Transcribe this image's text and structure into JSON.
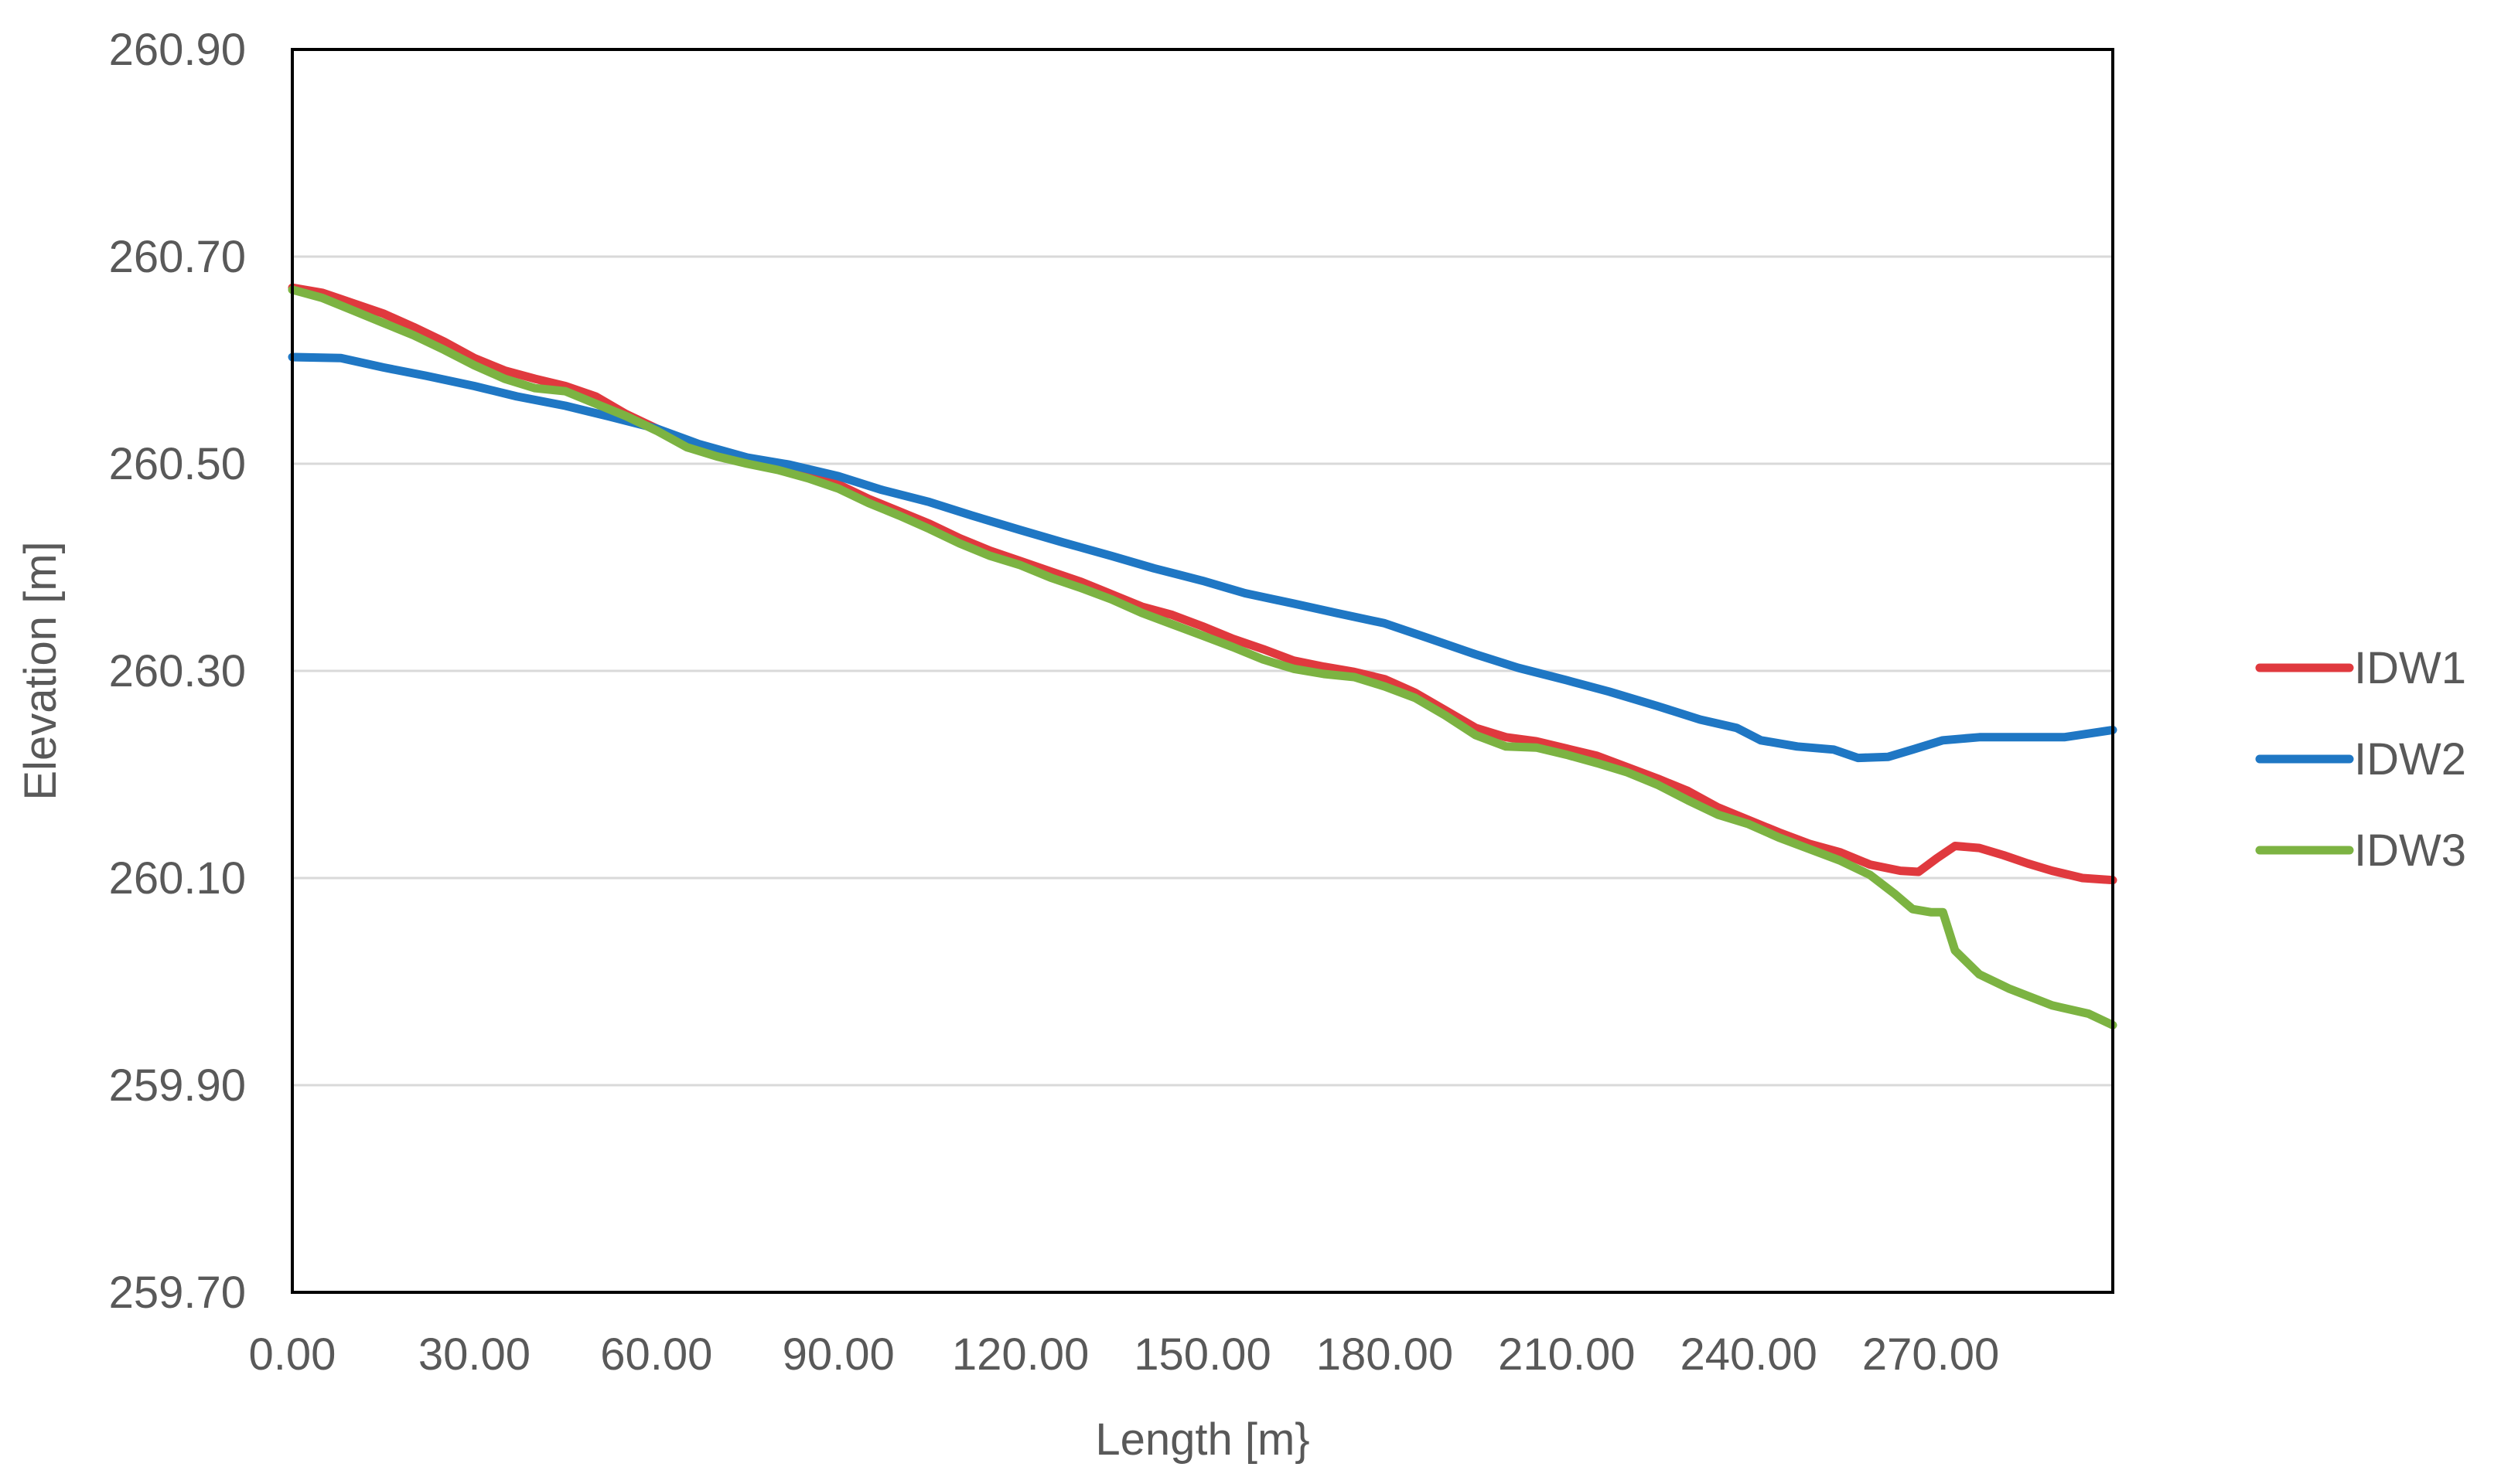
{
  "colors": {
    "IDW1": "#e0393e",
    "IDW2": "#1f77c4",
    "IDW3": "#7cb342",
    "grid": "#d9d9d9",
    "frame": "#000000",
    "text": "#595959"
  },
  "chart_data": {
    "type": "line",
    "title": "",
    "xlabel": "Length [m}",
    "ylabel": "Elevation [m]",
    "xlim": [
      0,
      300
    ],
    "ylim": [
      259.7,
      260.9
    ],
    "x_ticks": [
      0,
      30,
      60,
      90,
      120,
      150,
      180,
      210,
      240,
      270
    ],
    "x_tick_labels": [
      "0.00",
      "30.00",
      "60.00",
      "90.00",
      "120.00",
      "150.00",
      "180.00",
      "210.00",
      "240.00",
      "270.00"
    ],
    "y_ticks": [
      259.7,
      259.9,
      260.1,
      260.3,
      260.5,
      260.7,
      260.9
    ],
    "y_tick_labels": [
      "259.70",
      "259.90",
      "260.10",
      "260.30",
      "260.50",
      "260.70",
      "260.90"
    ],
    "grid": "horizontal",
    "legend_position": "right",
    "series": [
      {
        "name": "IDW1",
        "color_key": "IDW1",
        "points": [
          [
            0,
            260.67
          ],
          [
            5,
            260.665
          ],
          [
            10,
            260.655
          ],
          [
            15,
            260.645
          ],
          [
            20,
            260.632
          ],
          [
            25,
            260.618
          ],
          [
            30,
            260.602
          ],
          [
            35,
            260.59
          ],
          [
            40,
            260.582
          ],
          [
            45,
            260.575
          ],
          [
            50,
            260.565
          ],
          [
            55,
            260.548
          ],
          [
            60,
            260.534
          ],
          [
            65,
            260.52
          ],
          [
            70,
            260.512
          ],
          [
            75,
            260.503
          ],
          [
            80,
            260.496
          ],
          [
            85,
            260.49
          ],
          [
            90,
            260.48
          ],
          [
            95,
            260.466
          ],
          [
            100,
            260.454
          ],
          [
            105,
            260.442
          ],
          [
            110,
            260.428
          ],
          [
            115,
            260.416
          ],
          [
            120,
            260.406
          ],
          [
            125,
            260.396
          ],
          [
            130,
            260.386
          ],
          [
            135,
            260.374
          ],
          [
            140,
            260.362
          ],
          [
            145,
            260.354
          ],
          [
            150,
            260.343
          ],
          [
            155,
            260.331
          ],
          [
            160,
            260.321
          ],
          [
            165,
            260.31
          ],
          [
            170,
            260.304
          ],
          [
            175,
            260.299
          ],
          [
            180,
            260.292
          ],
          [
            185,
            260.279
          ],
          [
            190,
            260.262
          ],
          [
            195,
            260.245
          ],
          [
            200,
            260.236
          ],
          [
            205,
            260.232
          ],
          [
            210,
            260.225
          ],
          [
            215,
            260.218
          ],
          [
            220,
            260.207
          ],
          [
            225,
            260.196
          ],
          [
            230,
            260.184
          ],
          [
            235,
            260.168
          ],
          [
            240,
            260.156
          ],
          [
            245,
            260.144
          ],
          [
            250,
            260.133
          ],
          [
            255,
            260.125
          ],
          [
            260,
            260.113
          ],
          [
            265,
            260.107
          ],
          [
            268,
            260.106
          ],
          [
            271,
            260.119
          ],
          [
            274,
            260.131
          ],
          [
            278,
            260.129
          ],
          [
            282,
            260.122
          ],
          [
            286,
            260.114
          ],
          [
            290,
            260.107
          ],
          [
            295,
            260.1
          ],
          [
            300,
            260.098
          ]
        ]
      },
      {
        "name": "IDW2",
        "color_key": "IDW2",
        "points": [
          [
            0,
            260.603
          ],
          [
            8,
            260.602
          ],
          [
            15,
            260.593
          ],
          [
            22,
            260.585
          ],
          [
            30,
            260.575
          ],
          [
            37,
            260.565
          ],
          [
            45,
            260.556
          ],
          [
            52,
            260.546
          ],
          [
            60,
            260.534
          ],
          [
            67,
            260.519
          ],
          [
            75,
            260.506
          ],
          [
            82,
            260.499
          ],
          [
            90,
            260.488
          ],
          [
            97,
            260.475
          ],
          [
            105,
            260.463
          ],
          [
            112,
            260.45
          ],
          [
            120,
            260.436
          ],
          [
            127,
            260.424
          ],
          [
            135,
            260.411
          ],
          [
            142,
            260.399
          ],
          [
            150,
            260.387
          ],
          [
            157,
            260.375
          ],
          [
            165,
            260.365
          ],
          [
            172,
            260.356
          ],
          [
            180,
            260.346
          ],
          [
            187,
            260.332
          ],
          [
            195,
            260.316
          ],
          [
            202,
            260.303
          ],
          [
            210,
            260.291
          ],
          [
            217,
            260.28
          ],
          [
            225,
            260.266
          ],
          [
            232,
            260.253
          ],
          [
            238,
            260.245
          ],
          [
            242,
            260.233
          ],
          [
            248,
            260.227
          ],
          [
            254,
            260.224
          ],
          [
            258,
            260.216
          ],
          [
            263,
            260.217
          ],
          [
            267,
            260.224
          ],
          [
            272,
            260.233
          ],
          [
            278,
            260.236
          ],
          [
            285,
            260.236
          ],
          [
            292,
            260.236
          ],
          [
            300,
            260.243
          ]
        ]
      },
      {
        "name": "IDW3",
        "color_key": "IDW3",
        "points": [
          [
            0,
            260.668
          ],
          [
            5,
            260.66
          ],
          [
            10,
            260.648
          ],
          [
            15,
            260.636
          ],
          [
            20,
            260.624
          ],
          [
            25,
            260.61
          ],
          [
            30,
            260.595
          ],
          [
            35,
            260.582
          ],
          [
            40,
            260.573
          ],
          [
            45,
            260.57
          ],
          [
            50,
            260.558
          ],
          [
            55,
            260.546
          ],
          [
            60,
            260.532
          ],
          [
            65,
            260.516
          ],
          [
            70,
            260.507
          ],
          [
            75,
            260.5
          ],
          [
            80,
            260.494
          ],
          [
            85,
            260.486
          ],
          [
            90,
            260.476
          ],
          [
            95,
            260.462
          ],
          [
            100,
            260.45
          ],
          [
            105,
            260.437
          ],
          [
            110,
            260.423
          ],
          [
            115,
            260.411
          ],
          [
            120,
            260.402
          ],
          [
            125,
            260.39
          ],
          [
            130,
            260.38
          ],
          [
            135,
            260.369
          ],
          [
            140,
            260.356
          ],
          [
            145,
            260.345
          ],
          [
            150,
            260.334
          ],
          [
            155,
            260.323
          ],
          [
            160,
            260.311
          ],
          [
            165,
            260.302
          ],
          [
            170,
            260.297
          ],
          [
            175,
            260.294
          ],
          [
            180,
            260.285
          ],
          [
            185,
            260.274
          ],
          [
            190,
            260.257
          ],
          [
            195,
            260.238
          ],
          [
            200,
            260.227
          ],
          [
            205,
            260.226
          ],
          [
            210,
            260.219
          ],
          [
            215,
            260.211
          ],
          [
            220,
            260.202
          ],
          [
            225,
            260.19
          ],
          [
            230,
            260.175
          ],
          [
            235,
            260.161
          ],
          [
            240,
            260.152
          ],
          [
            245,
            260.139
          ],
          [
            250,
            260.128
          ],
          [
            255,
            260.117
          ],
          [
            260,
            260.103
          ],
          [
            264,
            260.085
          ],
          [
            267,
            260.07
          ],
          [
            270,
            260.067
          ],
          [
            272,
            260.067
          ],
          [
            274,
            260.03
          ],
          [
            278,
            260.007
          ],
          [
            283,
            259.993
          ],
          [
            290,
            259.977
          ],
          [
            296,
            259.969
          ],
          [
            300,
            259.958
          ]
        ]
      }
    ]
  }
}
